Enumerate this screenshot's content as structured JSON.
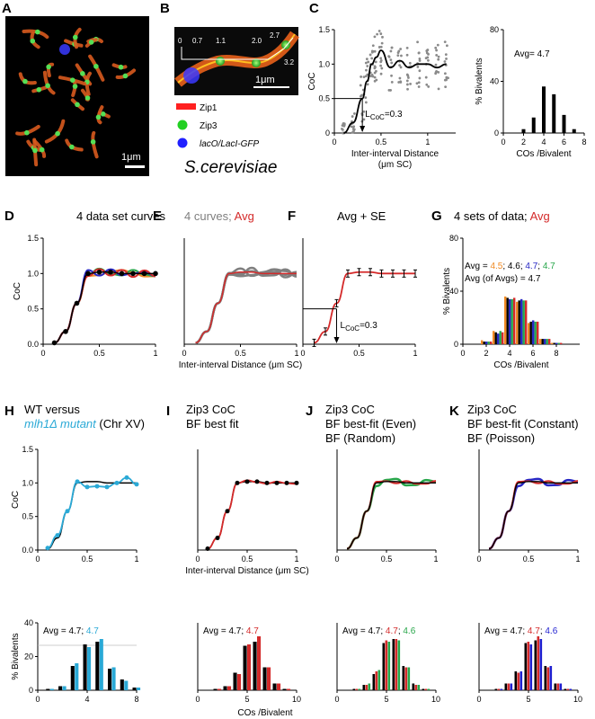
{
  "colors": {
    "black": "#000000",
    "red": "#d42a2a",
    "orange": "#f08a24",
    "blue": "#2727c4",
    "green": "#27a64a",
    "gray": "#7f7f7f",
    "cyan": "#2aa9d6",
    "navy": "#1f1fd0",
    "micro_bg": "#000000"
  },
  "panels": {
    "A": {
      "label": "A",
      "scale": "1μm"
    },
    "B": {
      "label": "B",
      "scale": "1μm",
      "distances": [
        "0",
        "0.7",
        "1.1",
        "2.0",
        "2.7",
        "3.2"
      ],
      "legend": [
        {
          "name": "Zip1",
          "color": "#ff2020",
          "shape": "bar"
        },
        {
          "name": "Zip3",
          "color": "#22d022",
          "shape": "dot"
        },
        {
          "name": "lacO/LacI-GFP",
          "color": "#2020ff",
          "shape": "dot"
        }
      ],
      "organism": "S.cerevisiae"
    },
    "C": {
      "label": "C",
      "ylabel": "CoC",
      "xlabel1": "Inter-interval Distance",
      "xlabel2": "(μm SC)",
      "lcoc": "L",
      "lcoc_sub": "CoC",
      "lcoc_val": "=0.3",
      "yticks": [
        "0",
        "0.5",
        "1.0",
        "1.5"
      ],
      "xticks": [
        "0",
        "0.5",
        "1"
      ],
      "hist_ylabel": "% Bivalents",
      "hist_xlabel": "COs /Bivalent",
      "hist_avg": "Avg= 4.7",
      "hist_yticks": [
        "0",
        "40",
        "80"
      ],
      "hist_xticks": [
        "0",
        "2",
        "4",
        "6",
        "8"
      ]
    },
    "D": {
      "label": "D",
      "title": "4 data set curves",
      "ylabel": "CoC",
      "yticks": [
        "0.0",
        "0.5",
        "1.0",
        "1.5"
      ],
      "xticks": [
        "0",
        "0.5",
        "1"
      ]
    },
    "E": {
      "label": "E",
      "title_a": "4 curves; ",
      "title_b": "Avg",
      "xlabel": "Inter-interval Distance (μm SC)",
      "xticks": [
        "0",
        "0.5",
        "1"
      ]
    },
    "F": {
      "label": "F",
      "title_a": "Avg ",
      "title_b": "+ SE",
      "lcoc": "L",
      "lcoc_sub": "CoC",
      "lcoc_val": "=0.3",
      "xticks": [
        "0",
        "0.5",
        "1"
      ]
    },
    "G": {
      "label": "G",
      "title_a": "4 sets of data; ",
      "title_b": "Avg",
      "avg_line": [
        "Avg = ",
        "4.5",
        ";  4.6; ",
        "4.7",
        ";  ",
        "4.7"
      ],
      "avg_line2": "Avg (of Avgs) = 4.7",
      "ylabel": "% Bivalents",
      "xlabel": "COs /Bivalent",
      "yticks": [
        "0",
        "40",
        "80"
      ],
      "xticks": [
        "0",
        "2",
        "4",
        "6",
        "8"
      ]
    },
    "H": {
      "label": "H",
      "title1": "WT versus",
      "title2a": "mlh1Δ mutant",
      "title2b": " (Chr XV)",
      "ylabel": "CoC",
      "yticks": [
        "0.0",
        "0.5",
        "1.0",
        "1.5"
      ],
      "xticks": [
        "0",
        "0.5",
        "1"
      ],
      "hist_avg_a": "Avg = 4.7; ",
      "hist_avg_b": "4.7",
      "hist_ylabel": "% Bivalents",
      "hist_yticks": [
        "0",
        "20",
        "40"
      ],
      "hist_xticks": [
        "0",
        "4",
        "8"
      ]
    },
    "I": {
      "label": "I",
      "title1": "Zip3 CoC",
      "title2": "BF best fit",
      "xlabel": "Inter-interval Distance (μm SC)",
      "xticks": [
        "0",
        "0.5",
        "1"
      ],
      "hist_avg_a": "Avg = 4.7; ",
      "hist_avg_b": "4.7",
      "hist_xlabel": "COs /Bivalent",
      "hist_xticks": [
        "0",
        "5",
        "10"
      ]
    },
    "J": {
      "label": "J",
      "title1": "Zip3 CoC",
      "title2": "BF best-fit (Even)",
      "title3": "BF (Random)",
      "xticks": [
        "0",
        "0.5",
        "1"
      ],
      "hist_avg_a": "Avg = 4.7; ",
      "hist_avg_b": "4.7",
      "hist_avg_c": "; ",
      "hist_avg_d": "4.6",
      "hist_xticks": [
        "0",
        "5",
        "10"
      ]
    },
    "K": {
      "label": "K",
      "title1": "Zip3 CoC",
      "title2": "BF best-fit (Constant)",
      "title3": "BF (Poisson)",
      "xticks": [
        "0",
        "0.5",
        "1"
      ],
      "hist_avg_a": "Avg = 4.7; ",
      "hist_avg_b": "4.7",
      "hist_avg_c": "; ",
      "hist_avg_d": "4.6",
      "hist_xticks": [
        "0",
        "5",
        "10"
      ]
    }
  },
  "chart_data": [
    {
      "panel": "C",
      "type": "line",
      "x": [
        0.1,
        0.2,
        0.3,
        0.35,
        0.4,
        0.45,
        0.5,
        0.6,
        0.7,
        0.8,
        0.9,
        1.0,
        1.1,
        1.2
      ],
      "values": [
        0.0,
        0.15,
        0.5,
        0.75,
        1.0,
        1.1,
        1.2,
        0.95,
        1.05,
        0.95,
        1.0,
        1.0,
        0.95,
        1.0
      ],
      "xlim": [
        0,
        1.3
      ],
      "ylim": [
        0,
        1.5
      ]
    },
    {
      "panel": "C-hist",
      "type": "bar",
      "categories": [
        1,
        2,
        3,
        4,
        5,
        6,
        7
      ],
      "values": [
        0,
        3,
        12,
        36,
        30,
        14,
        3
      ],
      "ylim": [
        0,
        80
      ]
    },
    {
      "panel": "D",
      "type": "line",
      "x": [
        0.1,
        0.2,
        0.3,
        0.4,
        0.5,
        0.6,
        0.7,
        0.8,
        0.9,
        1.0
      ],
      "values": [
        0.02,
        0.18,
        0.58,
        1.0,
        1.02,
        1.02,
        1.0,
        1.0,
        1.0,
        1.0
      ],
      "ylim": [
        0,
        1.5
      ]
    },
    {
      "panel": "G",
      "type": "bar",
      "categories": [
        1,
        2,
        3,
        4,
        5,
        6,
        7,
        8
      ],
      "series": [
        {
          "values": [
            0,
            3,
            10,
            36,
            32,
            16,
            4,
            1
          ]
        },
        {
          "values": [
            0,
            2,
            9,
            35,
            33,
            17,
            4,
            1
          ]
        },
        {
          "values": [
            0,
            2,
            8,
            34,
            34,
            18,
            4,
            1
          ]
        },
        {
          "values": [
            0,
            2,
            10,
            34,
            33,
            17,
            4,
            1
          ]
        },
        {
          "values": [
            0,
            2,
            9,
            35,
            33,
            17,
            4,
            1
          ]
        }
      ],
      "ylim": [
        0,
        80
      ]
    },
    {
      "panel": "H",
      "type": "line",
      "x": [
        0.1,
        0.2,
        0.3,
        0.4,
        0.5,
        0.6,
        0.7,
        0.8,
        0.9,
        1.0
      ],
      "values": [
        0.03,
        0.22,
        0.58,
        1.02,
        0.94,
        0.95,
        0.94,
        1.0,
        1.08,
        0.98
      ],
      "ylim": [
        0,
        1.5
      ]
    },
    {
      "panel": "H-hist",
      "type": "bar",
      "categories": [
        1,
        2,
        3,
        4,
        5,
        6,
        7,
        8
      ],
      "series": [
        {
          "values": [
            1,
            3,
            18,
            34,
            36,
            16,
            8,
            2
          ]
        },
        {
          "values": [
            1,
            3,
            20,
            32,
            38,
            17,
            7,
            2
          ]
        }
      ],
      "ylim": [
        0,
        50
      ]
    },
    {
      "panel": "I-hist",
      "type": "bar",
      "categories": [
        1,
        2,
        3,
        4,
        5,
        6,
        7,
        8,
        9,
        10
      ],
      "series": [
        {
          "values": [
            0,
            1,
            3,
            13,
            33,
            36,
            17,
            5,
            1,
            0
          ]
        },
        {
          "values": [
            0,
            1,
            3,
            12,
            34,
            40,
            17,
            5,
            1,
            0
          ]
        }
      ],
      "ylim": [
        0,
        50
      ]
    },
    {
      "panel": "J-hist",
      "type": "bar",
      "categories": [
        1,
        2,
        3,
        4,
        5,
        6,
        7,
        8,
        9,
        10
      ],
      "series": [
        {
          "values": [
            0,
            1,
            4,
            12,
            35,
            38,
            18,
            5,
            1,
            0
          ]
        },
        {
          "values": [
            0,
            1,
            4,
            14,
            37,
            38,
            17,
            4,
            1,
            0
          ]
        },
        {
          "values": [
            0,
            1,
            5,
            15,
            36,
            37,
            17,
            4,
            1,
            0
          ]
        }
      ],
      "ylim": [
        0,
        50
      ]
    },
    {
      "panel": "K-hist",
      "type": "bar",
      "categories": [
        1,
        2,
        3,
        4,
        5,
        6,
        7,
        8,
        9,
        10
      ],
      "series": [
        {
          "values": [
            0,
            1,
            5,
            14,
            35,
            37,
            18,
            5,
            1,
            0
          ]
        },
        {
          "values": [
            0,
            1,
            5,
            13,
            36,
            40,
            17,
            5,
            1,
            0
          ]
        },
        {
          "values": [
            0,
            1,
            5,
            14,
            34,
            38,
            18,
            5,
            1,
            0
          ]
        }
      ],
      "ylim": [
        0,
        50
      ]
    }
  ]
}
